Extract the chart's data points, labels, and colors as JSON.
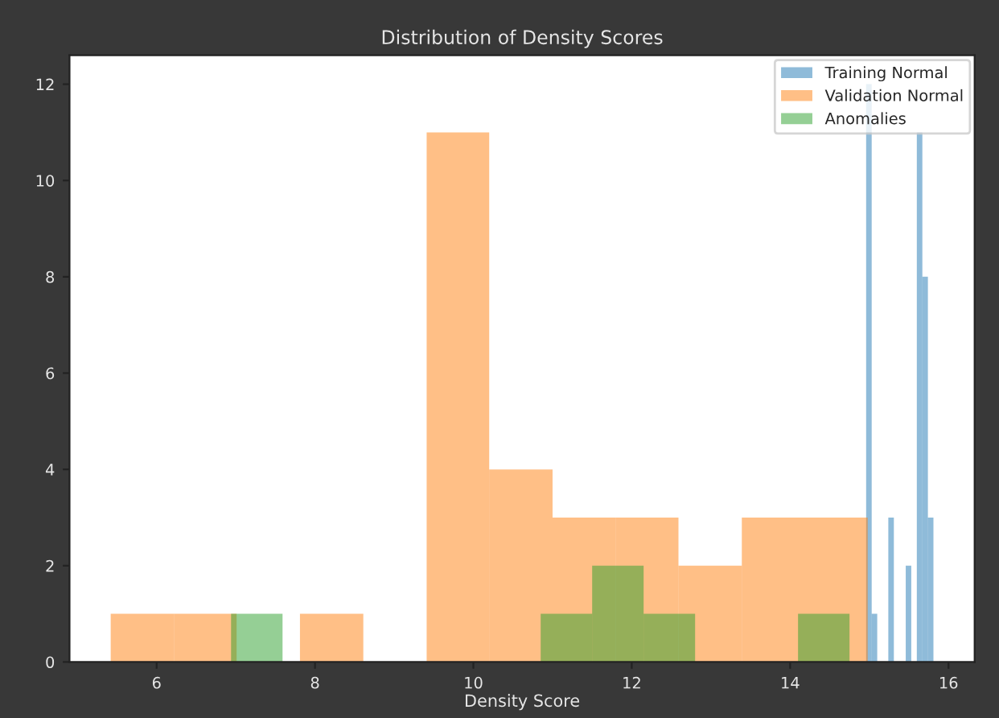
{
  "chart_data": {
    "type": "histogram",
    "bins": [
      5.42,
      6.22,
      7.01,
      7.81,
      8.61,
      9.41,
      10.2,
      11.0,
      11.8,
      12.59,
      13.39,
      14.19,
      14.98
    ],
    "title": "Distribution of Density Scores",
    "xlabel": "Density Score",
    "series": [
      {
        "name": "Training Normal",
        "color": "#8fbbd9",
        "bins": [
          14.96,
          15.03,
          15.1,
          15.24,
          15.31,
          15.46,
          15.53,
          15.6,
          15.67,
          15.74,
          15.81
        ],
        "values": [
          12,
          1,
          0,
          3,
          0,
          2,
          0,
          11,
          8,
          3
        ]
      },
      {
        "name": "Validation Normal",
        "color": "#ffbf86",
        "values": [
          1,
          1,
          0,
          1,
          0,
          11,
          4,
          3,
          3,
          2,
          3,
          3
        ]
      },
      {
        "name": "Anomalies",
        "color": "#95cf95",
        "bins": [
          6.94,
          7.59,
          10.85,
          11.5,
          12.15,
          12.8,
          14.1,
          14.75
        ],
        "values": [
          1,
          0,
          1,
          2,
          1,
          0,
          1
        ]
      }
    ],
    "xlim": [
      4.9,
      16.33
    ],
    "ylim": [
      0,
      12.6
    ],
    "xticks": [
      6,
      8,
      10,
      12,
      14,
      16
    ],
    "yticks": [
      0,
      2,
      4,
      6,
      8,
      10,
      12
    ],
    "grid": false,
    "legend": "top right"
  }
}
